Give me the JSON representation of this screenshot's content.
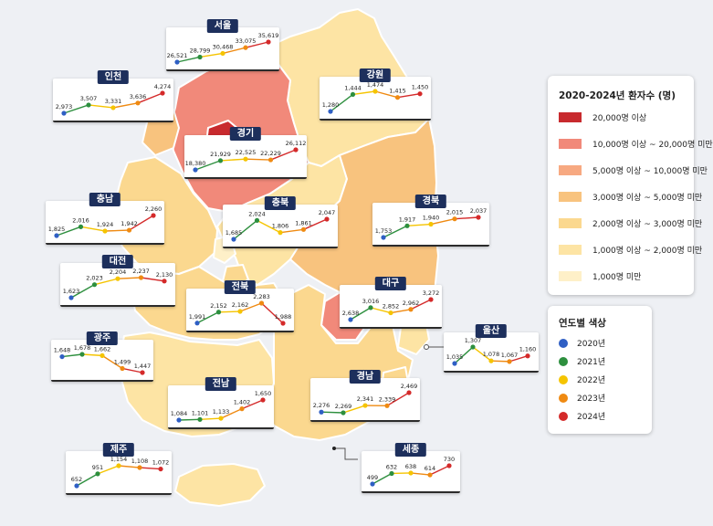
{
  "legend": {
    "title": "2020-2024년 환자수 (명)",
    "bins": [
      {
        "label": "20,000명 이상",
        "color": "#c82a2e"
      },
      {
        "label": "10,000명 이상 ~ 20,000명 미만",
        "color": "#f1897a"
      },
      {
        "label": "5,000명 이상 ~ 10,000명 미만",
        "color": "#f7a981"
      },
      {
        "label": "3,000명 이상 ~ 5,000명 미만",
        "color": "#f8c37e"
      },
      {
        "label": "2,000명 이상 ~ 3,000명 미만",
        "color": "#fbd88f"
      },
      {
        "label": "1,000명 이상 ~ 2,000명 미만",
        "color": "#fde4a4"
      },
      {
        "label": "1,000명 미만",
        "color": "#fef0c8"
      }
    ]
  },
  "year_legend": {
    "title": "연도별 색상",
    "years": [
      {
        "label": "2020년",
        "color": "#2f5fc4"
      },
      {
        "label": "2021년",
        "color": "#2d8f3e"
      },
      {
        "label": "2022년",
        "color": "#f5c400"
      },
      {
        "label": "2023년",
        "color": "#ef8a12"
      },
      {
        "label": "2024년",
        "color": "#d42a2a"
      }
    ]
  },
  "chart_data": {
    "type": "line",
    "x": [
      "2020년",
      "2021년",
      "2022년",
      "2023년",
      "2024년"
    ],
    "series": [
      {
        "name": "서울",
        "values": [
          26521,
          28799,
          30468,
          33075,
          35619
        ],
        "labels": [
          "26,521",
          "28,799",
          "30,468",
          "33,075",
          "35,619"
        ]
      },
      {
        "name": "인천",
        "values": [
          2973,
          3507,
          3331,
          3636,
          4274
        ],
        "labels": [
          "2,973",
          "3,507",
          "3,331",
          "3,636",
          "4,274"
        ]
      },
      {
        "name": "강원",
        "values": [
          1280,
          1444,
          1474,
          1415,
          1450
        ],
        "labels": [
          "1,280",
          "1,444",
          "1,474",
          "1,415",
          "1,450"
        ]
      },
      {
        "name": "경기",
        "values": [
          18380,
          21929,
          22525,
          22229,
          26112
        ],
        "labels": [
          "18,380",
          "21,929",
          "22,525",
          "22,229",
          "26,112"
        ]
      },
      {
        "name": "충남",
        "values": [
          1825,
          2016,
          1924,
          1942,
          2260
        ],
        "labels": [
          "1,825",
          "2,016",
          "1,924",
          "1,942",
          "2,260"
        ]
      },
      {
        "name": "충북",
        "values": [
          1685,
          2024,
          1806,
          1861,
          2047
        ],
        "labels": [
          "1,685",
          "2,024",
          "1,806",
          "1,861",
          "2,047"
        ]
      },
      {
        "name": "경북",
        "values": [
          1753,
          1917,
          1940,
          2015,
          2037
        ],
        "labels": [
          "1,753",
          "1,917",
          "1,940",
          "2,015",
          "2,037"
        ]
      },
      {
        "name": "대전",
        "values": [
          1623,
          2023,
          2204,
          2237,
          2130
        ],
        "labels": [
          "1,623",
          "2,023",
          "2,204",
          "2,237",
          "2,130"
        ]
      },
      {
        "name": "전북",
        "values": [
          1991,
          2152,
          2162,
          2283,
          1988
        ],
        "labels": [
          "1,991",
          "2,152",
          "2,162",
          "2,283",
          "1,988"
        ]
      },
      {
        "name": "대구",
        "values": [
          2638,
          3016,
          2852,
          2962,
          3272
        ],
        "labels": [
          "2,638",
          "3,016",
          "2,852",
          "2,962",
          "3,272"
        ]
      },
      {
        "name": "울산",
        "values": [
          1035,
          1307,
          1078,
          1067,
          1160
        ],
        "labels": [
          "1,035",
          "1,307",
          "1,078",
          "1,067",
          "1,160"
        ]
      },
      {
        "name": "광주",
        "values": [
          1648,
          1678,
          1662,
          1499,
          1447
        ],
        "labels": [
          "1,648",
          "1,678",
          "1,662",
          "1,499",
          "1,447"
        ]
      },
      {
        "name": "전남",
        "values": [
          1084,
          1101,
          1133,
          1402,
          1650
        ],
        "labels": [
          "1,084",
          "1,101",
          "1,133",
          "1,402",
          "1,650"
        ]
      },
      {
        "name": "경남",
        "values": [
          2276,
          2269,
          2341,
          2339,
          2469
        ],
        "labels": [
          "2,276",
          "2,269",
          "2,341",
          "2,339",
          "2,469"
        ]
      },
      {
        "name": "제주",
        "values": [
          652,
          951,
          1154,
          1108,
          1072
        ],
        "labels": [
          "652",
          "951",
          "1,154",
          "1,108",
          "1,072"
        ]
      },
      {
        "name": "세종",
        "values": [
          499,
          632,
          638,
          614,
          730
        ],
        "labels": [
          "499",
          "632",
          "638",
          "614",
          "730"
        ]
      }
    ]
  }
}
